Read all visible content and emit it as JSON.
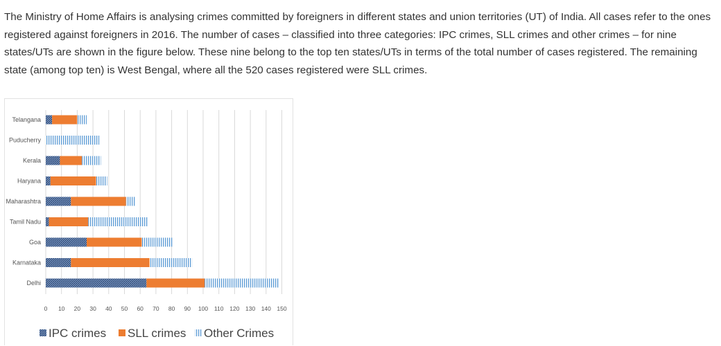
{
  "passage": "The Ministry of Home Affairs is analysing crimes committed by foreigners in different states and union territories (UT) of India. All cases refer to the ones registered against foreigners in 2016. The number of cases – classified into three categories: IPC crimes, SLL crimes and other crimes – for nine states/UTs are shown in the figure below. These nine belong to the top ten states/UTs in terms of the total number of cases registered. The remaining state (among top ten) is West Bengal, where all the 520 cases registered were SLL crimes.",
  "colors": {
    "ipc": "#4a6a9a",
    "sll": "#ed7d31",
    "other": "#5b9bd5",
    "grid": "#d9d9d9"
  },
  "chart_data": {
    "type": "bar",
    "orientation": "horizontal",
    "stacked": true,
    "categories": [
      "Telangana",
      "Puducherry",
      "Kerala",
      "Haryana",
      "Maharashtra",
      "Tamil Nadu",
      "Goa",
      "Karnataka",
      "Delhi"
    ],
    "series": [
      {
        "name": "IPC crimes",
        "values": [
          4,
          0,
          9,
          3,
          16,
          2,
          26,
          16,
          64
        ]
      },
      {
        "name": "SLL crimes",
        "values": [
          16,
          0,
          14,
          29,
          35,
          25,
          35,
          50,
          37
        ]
      },
      {
        "name": "Other Crimes",
        "values": [
          6,
          34,
          12,
          7,
          6,
          38,
          20,
          27,
          47
        ]
      }
    ],
    "xticks": [
      "0",
      "10",
      "20",
      "30",
      "40",
      "50",
      "60",
      "70",
      "80",
      "90",
      "100",
      "110",
      "120",
      "130",
      "140",
      "150"
    ],
    "xlim": [
      0,
      150
    ],
    "grid": true,
    "legend": "bottom"
  }
}
